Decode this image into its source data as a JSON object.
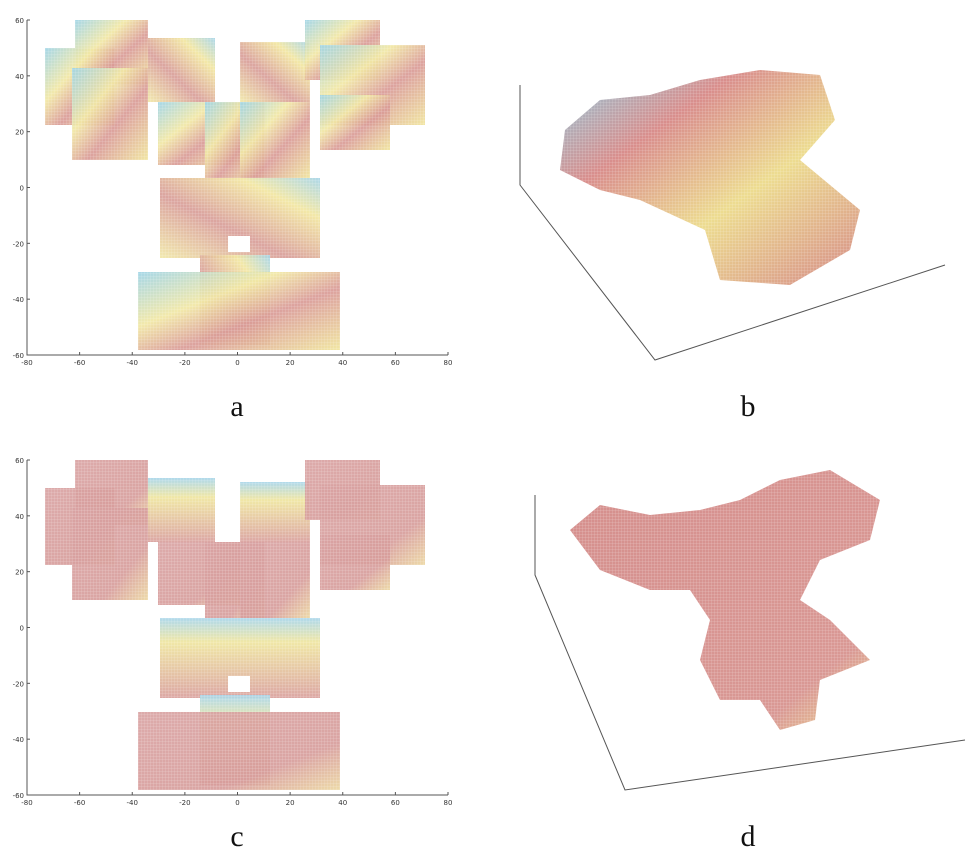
{
  "panels": [
    {
      "label": "a",
      "xticks": [
        -80,
        -60,
        -40,
        -20,
        0,
        20,
        40,
        60,
        80
      ],
      "yticks": [
        60,
        40,
        20,
        0,
        -20,
        -40,
        -60
      ]
    },
    {
      "label": "b"
    },
    {
      "label": "c",
      "xticks": [
        -80,
        -60,
        -40,
        -20,
        0,
        20,
        40,
        60,
        80
      ],
      "yticks": [
        60,
        40,
        20,
        0,
        -20,
        -40,
        -60
      ]
    },
    {
      "label": "d"
    }
  ]
}
